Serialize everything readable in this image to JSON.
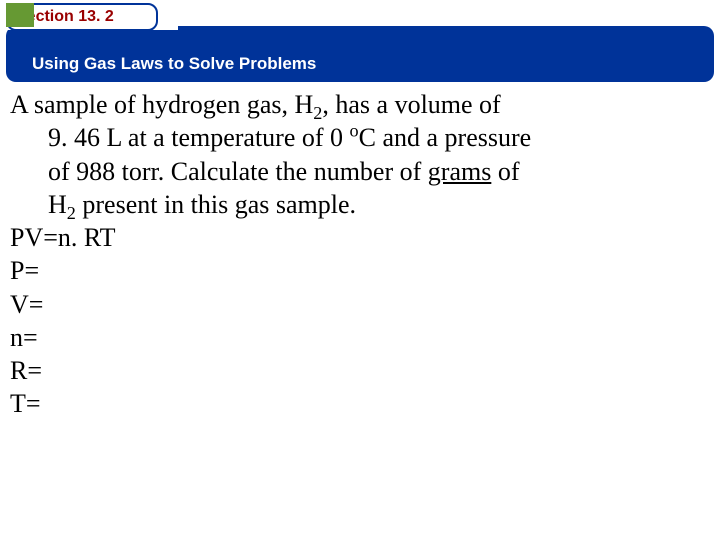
{
  "header": {
    "section_label": "Section 13. 2",
    "subtitle": "Using Gas Laws to Solve Problems",
    "tab_border_color": "#003399",
    "tab_bg_color": "#ffffff",
    "tab_text_color": "#990000",
    "bar_bg_color": "#003399",
    "bar_text_color": "#ffffff",
    "square_color": "#669933"
  },
  "body": {
    "text_color": "#000000",
    "fontsize": 26,
    "p1a": "A sample of hydrogen gas, H",
    "p1b": ", has a volume of",
    "p2a": "9. 46 L at a temperature of 0 ",
    "p2b": "C and a pressure",
    "p3a": "of 988 torr. Calculate the number of ",
    "p3_uline": "grams",
    "p3b": " of",
    "p4": "H",
    "p4b": " present in this gas sample.",
    "eq1": "PV=n. RT",
    "eq2": "P=",
    "eq3": "V=",
    "eq4": "n=",
    "eq5": "R=",
    "eq6": "T=",
    "sub2": "2",
    "supo": "o"
  }
}
